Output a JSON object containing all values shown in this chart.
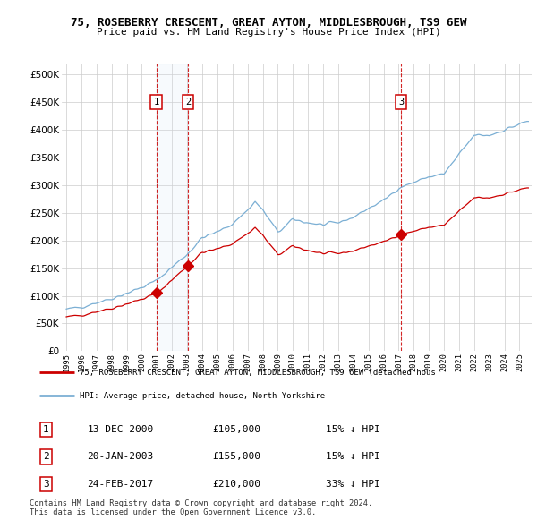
{
  "title": "75, ROSEBERRY CRESCENT, GREAT AYTON, MIDDLESBROUGH, TS9 6EW",
  "subtitle": "Price paid vs. HM Land Registry's House Price Index (HPI)",
  "xlim_start": 1994.7,
  "xlim_end": 2025.8,
  "ylim": [
    0,
    520000
  ],
  "yticks": [
    0,
    50000,
    100000,
    150000,
    200000,
    250000,
    300000,
    350000,
    400000,
    450000,
    500000
  ],
  "sale_dates": [
    2000.95,
    2003.05,
    2017.15
  ],
  "sale_prices": [
    105000,
    155000,
    210000
  ],
  "sale_labels": [
    "1",
    "2",
    "3"
  ],
  "legend_line1": "75, ROSEBERRY CRESCENT, GREAT AYTON, MIDDLESBROUGH, TS9 6EW (detached hous",
  "legend_line2": "HPI: Average price, detached house, North Yorkshire",
  "table_data": [
    {
      "num": "1",
      "date": "13-DEC-2000",
      "price": "£105,000",
      "hpi": "15% ↓ HPI"
    },
    {
      "num": "2",
      "date": "20-JAN-2003",
      "price": "£155,000",
      "hpi": "15% ↓ HPI"
    },
    {
      "num": "3",
      "date": "24-FEB-2017",
      "price": "£210,000",
      "hpi": "33% ↓ HPI"
    }
  ],
  "footer": "Contains HM Land Registry data © Crown copyright and database right 2024.\nThis data is licensed under the Open Government Licence v3.0.",
  "red_color": "#cc0000",
  "blue_color": "#7bafd4",
  "blue_fill_color": "#d6e4f5",
  "background_color": "#ffffff",
  "grid_color": "#cccccc"
}
